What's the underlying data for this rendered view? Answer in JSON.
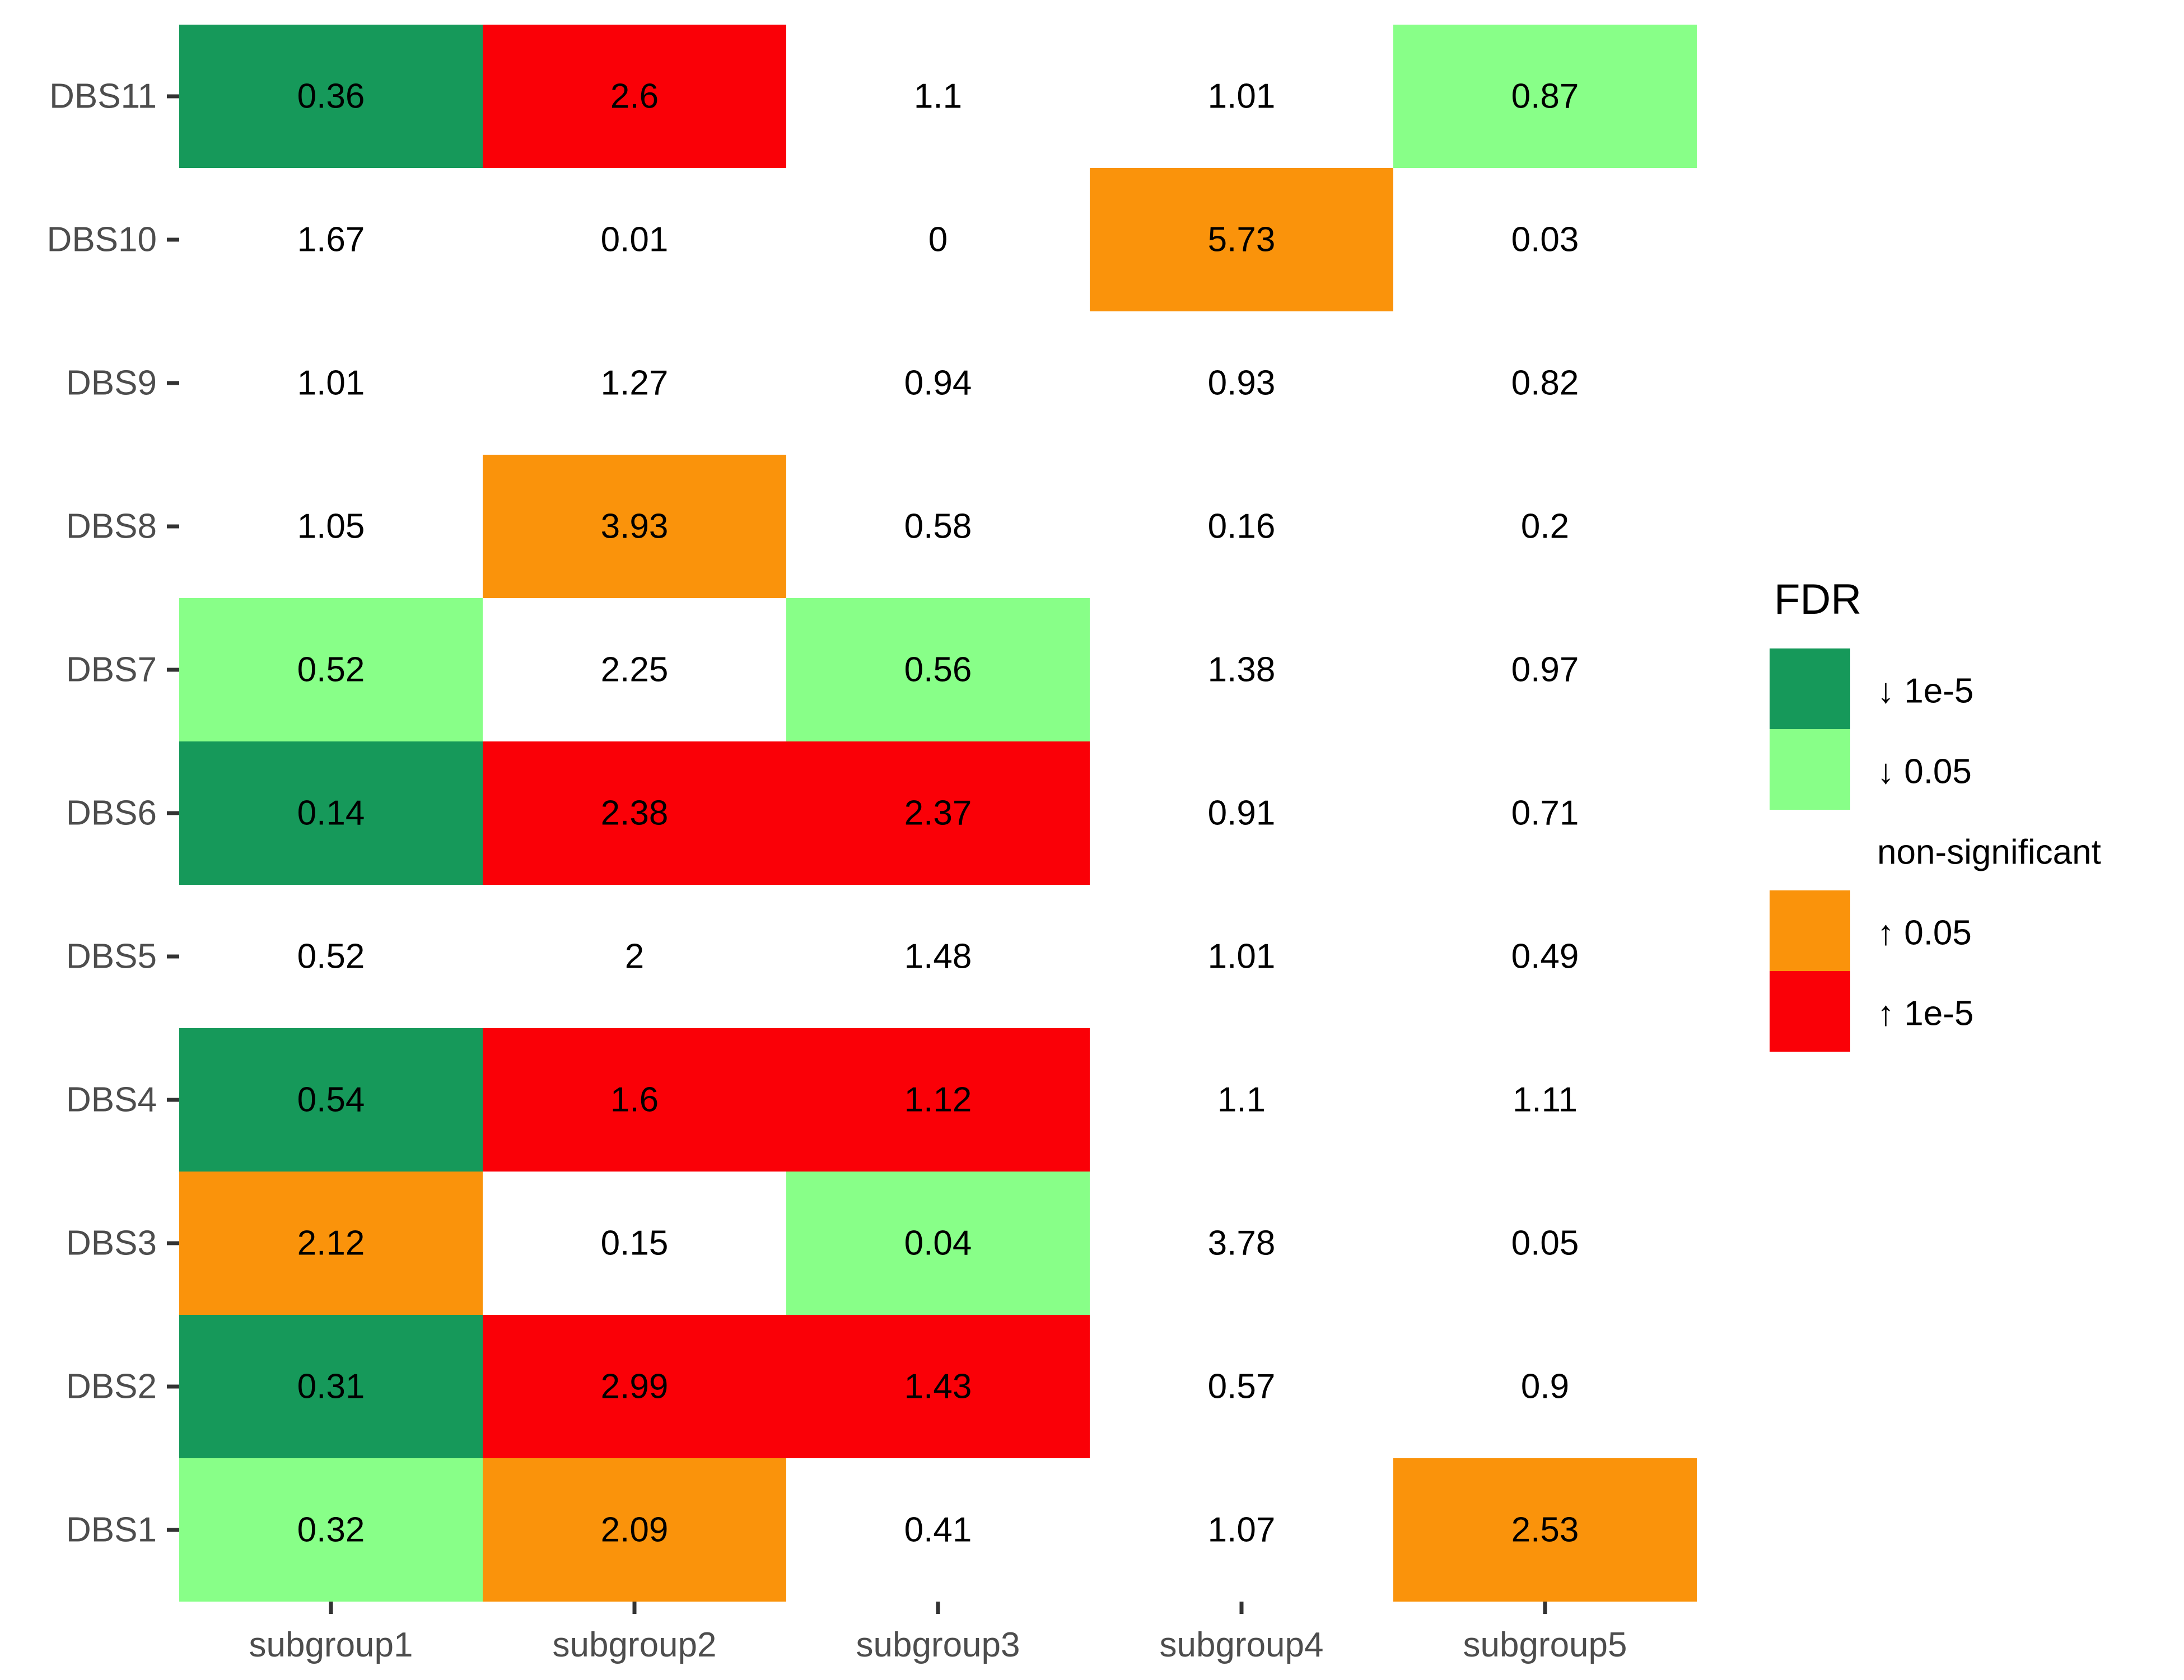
{
  "chart_data": {
    "type": "heatmap",
    "legend_title": "FDR",
    "legend_position": "right",
    "x_categories": [
      "subgroup1",
      "subgroup2",
      "subgroup3",
      "subgroup4",
      "subgroup5"
    ],
    "y_categories": [
      "DBS1",
      "DBS2",
      "DBS3",
      "DBS4",
      "DBS5",
      "DBS6",
      "DBS7",
      "DBS8",
      "DBS9",
      "DBS10",
      "DBS11"
    ],
    "legend": [
      {
        "key": "down_1e5",
        "label": "↓ 1e-5",
        "color": "#16995A"
      },
      {
        "key": "down_005",
        "label": "↓ 0.05",
        "color": "#88FF88"
      },
      {
        "key": "ns",
        "label": "non-significant",
        "color": "#FFFFFF"
      },
      {
        "key": "up_005",
        "label": "↑ 0.05",
        "color": "#FA930B"
      },
      {
        "key": "up_1e5",
        "label": "↑ 1e-5",
        "color": "#FA0007"
      }
    ],
    "rows": [
      {
        "label": "DBS1",
        "values": [
          "0.32",
          "2.09",
          "0.41",
          "1.07",
          "2.53"
        ],
        "categories": [
          "down_005",
          "up_005",
          "ns",
          "ns",
          "up_005"
        ]
      },
      {
        "label": "DBS2",
        "values": [
          "0.31",
          "2.99",
          "1.43",
          "0.57",
          "0.9"
        ],
        "categories": [
          "down_1e5",
          "up_1e5",
          "up_1e5",
          "ns",
          "ns"
        ]
      },
      {
        "label": "DBS3",
        "values": [
          "2.12",
          "0.15",
          "0.04",
          "3.78",
          "0.05"
        ],
        "categories": [
          "up_005",
          "ns",
          "down_005",
          "ns",
          "ns"
        ]
      },
      {
        "label": "DBS4",
        "values": [
          "0.54",
          "1.6",
          "1.12",
          "1.1",
          "1.11"
        ],
        "categories": [
          "down_1e5",
          "up_1e5",
          "up_1e5",
          "ns",
          "ns"
        ]
      },
      {
        "label": "DBS5",
        "values": [
          "0.52",
          "2",
          "1.48",
          "1.01",
          "0.49"
        ],
        "categories": [
          "ns",
          "ns",
          "ns",
          "ns",
          "ns"
        ]
      },
      {
        "label": "DBS6",
        "values": [
          "0.14",
          "2.38",
          "2.37",
          "0.91",
          "0.71"
        ],
        "categories": [
          "down_1e5",
          "up_1e5",
          "up_1e5",
          "ns",
          "ns"
        ]
      },
      {
        "label": "DBS7",
        "values": [
          "0.52",
          "2.25",
          "0.56",
          "1.38",
          "0.97"
        ],
        "categories": [
          "down_005",
          "ns",
          "down_005",
          "ns",
          "ns"
        ]
      },
      {
        "label": "DBS8",
        "values": [
          "1.05",
          "3.93",
          "0.58",
          "0.16",
          "0.2"
        ],
        "categories": [
          "ns",
          "up_005",
          "ns",
          "ns",
          "ns"
        ]
      },
      {
        "label": "DBS9",
        "values": [
          "1.01",
          "1.27",
          "0.94",
          "0.93",
          "0.82"
        ],
        "categories": [
          "ns",
          "ns",
          "ns",
          "ns",
          "ns"
        ]
      },
      {
        "label": "DBS10",
        "values": [
          "1.67",
          "0.01",
          "0",
          "5.73",
          "0.03"
        ],
        "categories": [
          "ns",
          "ns",
          "ns",
          "up_005",
          "ns"
        ]
      },
      {
        "label": "DBS11",
        "values": [
          "0.36",
          "2.6",
          "1.1",
          "1.01",
          "0.87"
        ],
        "categories": [
          "down_1e5",
          "up_1e5",
          "ns",
          "ns",
          "down_005"
        ]
      }
    ]
  }
}
